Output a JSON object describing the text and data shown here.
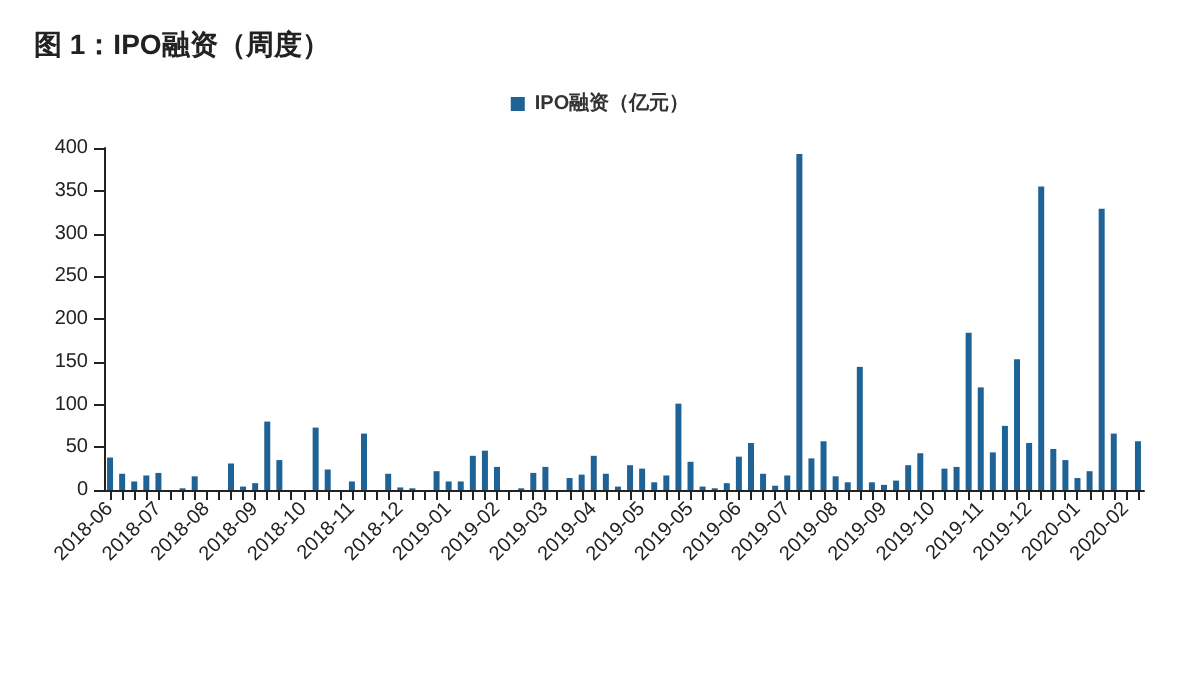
{
  "chart_data": {
    "type": "bar",
    "title": "图 1：IPO融资（周度）",
    "categories": [
      "2018-06",
      null,
      null,
      null,
      "2018-07",
      null,
      null,
      null,
      "2018-08",
      null,
      null,
      null,
      "2018-09",
      null,
      null,
      null,
      "2018-10",
      null,
      null,
      null,
      "2018-11",
      null,
      null,
      null,
      "2018-12",
      null,
      null,
      null,
      "2019-01",
      null,
      null,
      null,
      "2019-02",
      null,
      null,
      null,
      "2019-03",
      null,
      null,
      null,
      "2019-04",
      null,
      null,
      null,
      "2019-05",
      null,
      null,
      null,
      "2019-05",
      null,
      null,
      null,
      "2019-06",
      null,
      null,
      null,
      "2019-07",
      null,
      null,
      null,
      "2019-08",
      null,
      null,
      null,
      "2019-09",
      null,
      null,
      null,
      "2019-10",
      null,
      null,
      null,
      "2019-11",
      null,
      null,
      null,
      "2019-12",
      null,
      null,
      null,
      "2020-01",
      null,
      null,
      null,
      "2020-02",
      null
    ],
    "series": [
      {
        "name": "IPO融资（亿元）",
        "color": "#1f6396",
        "values": [
          38,
          19,
          10,
          17,
          20,
          0,
          2,
          16,
          0,
          0,
          31,
          4,
          8,
          80,
          35,
          0,
          0,
          73,
          24,
          0,
          10,
          66,
          0,
          19,
          3,
          2,
          0,
          22,
          10,
          10,
          40,
          46,
          27,
          0,
          2,
          20,
          27,
          0,
          14,
          18,
          40,
          19,
          4,
          29,
          25,
          9,
          17,
          101,
          33,
          4,
          2,
          8,
          39,
          55,
          19,
          5,
          17,
          393,
          37,
          57,
          16,
          9,
          144,
          9,
          6,
          11,
          29,
          43,
          0,
          25,
          27,
          184,
          120,
          44,
          75,
          153,
          55,
          355,
          48,
          35,
          14,
          22,
          329,
          66,
          0,
          57
        ]
      }
    ],
    "ylim": [
      0,
      400
    ],
    "yticks": [
      0,
      50,
      100,
      150,
      200,
      250,
      300,
      350,
      400
    ],
    "grid": false,
    "legend": "top"
  }
}
